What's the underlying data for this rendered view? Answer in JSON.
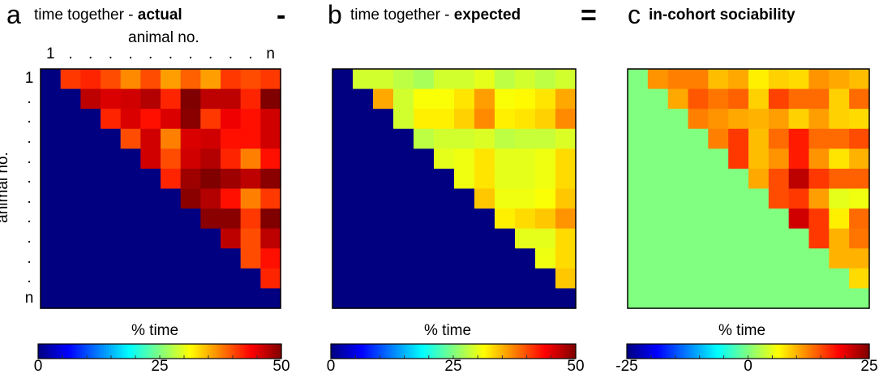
{
  "operators": {
    "minus": "-",
    "equals": "="
  },
  "axis": {
    "label": "animal no.",
    "ticks": [
      "1",
      ".",
      ".",
      ".",
      ".",
      ".",
      ".",
      ".",
      ".",
      ".",
      ".",
      "n"
    ]
  },
  "chart_data": [
    {
      "type": "heatmap",
      "panel": "a",
      "title_prefix": "time together - ",
      "title_bold": "actual",
      "xlabel": "animal no.",
      "ylabel": "animal no.",
      "colorbar_label": "% time",
      "colormap": "jet",
      "clim": [
        0,
        50
      ],
      "colorbar_ticks": [
        "0",
        "25",
        "50"
      ],
      "lower_value": 0,
      "upper_rows": [
        [
          41,
          42,
          40,
          37,
          40,
          36,
          39,
          36,
          41,
          40,
          41
        ],
        [
          47,
          45.5,
          46,
          47.5,
          42,
          50,
          47,
          47,
          42,
          50
        ],
        [
          42,
          45.5,
          43,
          45.5,
          49.5,
          41,
          44.5,
          43,
          46
        ],
        [
          40,
          46,
          37.5,
          45.5,
          46,
          43,
          43,
          46
        ],
        [
          46,
          40,
          46,
          47.5,
          42,
          37.5,
          43
        ],
        [
          42,
          48.5,
          50,
          48.5,
          47,
          49.5
        ],
        [
          49.5,
          47.5,
          43,
          37.5,
          41
        ],
        [
          49.5,
          49.5,
          41,
          50
        ],
        [
          47,
          40,
          47
        ],
        [
          40,
          43
        ],
        [
          42
        ]
      ]
    },
    {
      "type": "heatmap",
      "panel": "b",
      "title_prefix": "time together - ",
      "title_bold": "expected",
      "colorbar_label": "% time",
      "colormap": "jet",
      "clim": [
        0,
        50
      ],
      "colorbar_ticks": [
        "0",
        "25",
        "50"
      ],
      "lower_value": 0,
      "upper_rows": [
        [
          29,
          29,
          28,
          27,
          29,
          29,
          30,
          28,
          29,
          28,
          29
        ],
        [
          35.5,
          29,
          31,
          31,
          32.5,
          36,
          31,
          31.5,
          32.5,
          35.5
        ],
        [
          29,
          32,
          32,
          33.5,
          37,
          32,
          32.5,
          33.5,
          37
        ],
        [
          28,
          29,
          29,
          29.5,
          28,
          28.5,
          28.5,
          29.5
        ],
        [
          30,
          30.5,
          32.5,
          30,
          30,
          30.5,
          33
        ],
        [
          30.5,
          32.5,
          30,
          30,
          30.5,
          33
        ],
        [
          34,
          30.5,
          30.5,
          31,
          34
        ],
        [
          32,
          33,
          34,
          36.5
        ],
        [
          30,
          30,
          33
        ],
        [
          30.5,
          33
        ],
        [
          34
        ]
      ]
    },
    {
      "type": "heatmap",
      "panel": "c",
      "title_prefix": "",
      "title_bold": "in-cohort sociability",
      "colorbar_label": "% time",
      "colormap": "jet",
      "clim": [
        -25,
        25
      ],
      "colorbar_ticks": [
        "-25",
        "0",
        "25"
      ],
      "lower_value": 0,
      "upper_rows": [
        [
          11.5,
          12.5,
          12.5,
          9.5,
          10.5,
          7,
          8.5,
          8,
          11.5,
          10.5,
          9.5
        ],
        [
          10.5,
          14.5,
          13,
          14,
          8.5,
          15.5,
          13.5,
          13.5,
          8.5,
          13.5
        ],
        [
          12.5,
          11.5,
          10.5,
          10,
          11,
          8.5,
          11,
          8.5,
          8
        ],
        [
          12.5,
          16,
          9.5,
          13.5,
          17.5,
          13.5,
          13.5,
          15
        ],
        [
          16,
          9.5,
          11.5,
          17.5,
          11.5,
          7.5,
          10
        ],
        [
          10.5,
          15,
          22,
          16,
          14,
          14
        ],
        [
          15,
          16,
          11,
          5,
          5.5
        ],
        [
          21,
          16,
          7,
          13.5
        ],
        [
          16,
          10,
          13
        ],
        [
          10,
          10
        ],
        [
          8
        ]
      ]
    }
  ]
}
